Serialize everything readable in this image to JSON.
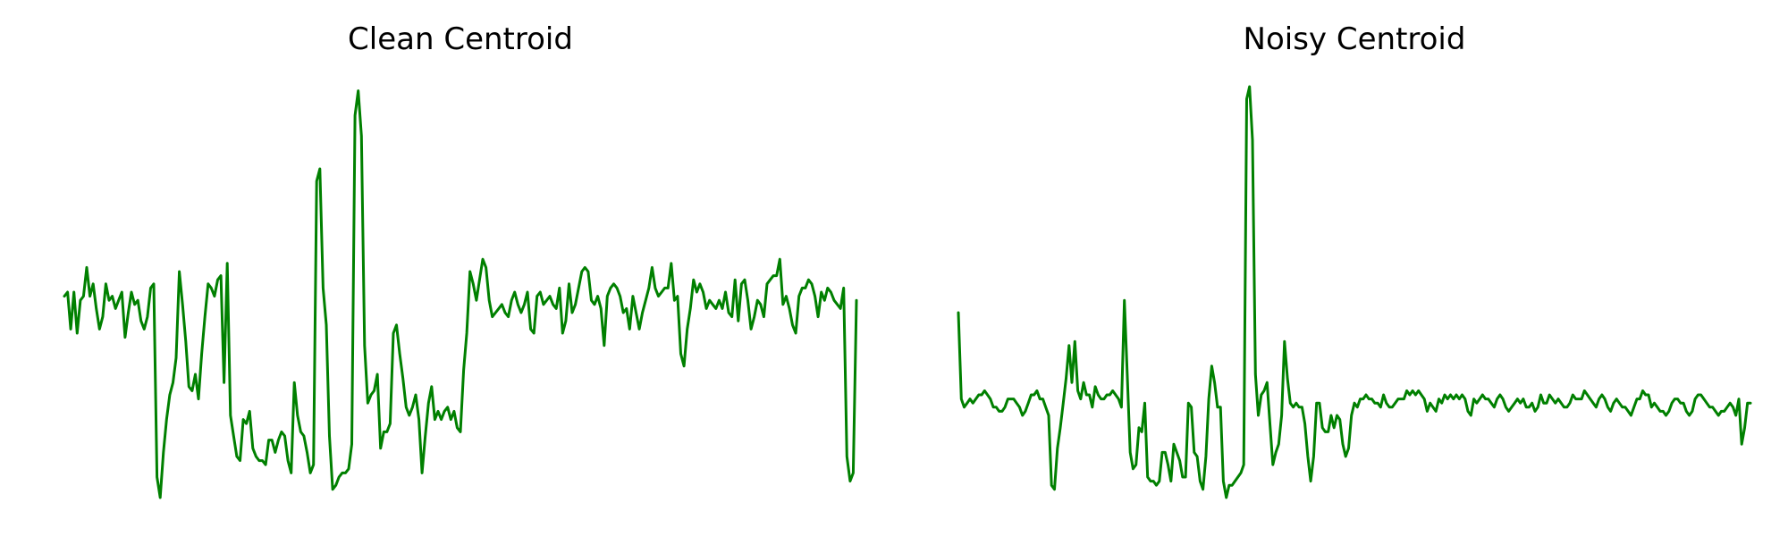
{
  "chart_data": [
    {
      "type": "line",
      "title": "Clean Centroid",
      "xlabel": "",
      "ylabel": "",
      "axes": "off",
      "grid": false,
      "color": "#008000",
      "series": [
        {
          "values": [
            0.49,
            0.5,
            0.41,
            0.5,
            0.4,
            0.48,
            0.49,
            0.56,
            0.49,
            0.52,
            0.46,
            0.41,
            0.44,
            0.52,
            0.48,
            0.49,
            0.46,
            0.48,
            0.5,
            0.39,
            0.45,
            0.5,
            0.47,
            0.48,
            0.43,
            0.41,
            0.44,
            0.51,
            0.52,
            0.05,
            0.0,
            0.11,
            0.19,
            0.25,
            0.28,
            0.34,
            0.55,
            0.47,
            0.38,
            0.27,
            0.26,
            0.3,
            0.24,
            0.35,
            0.44,
            0.52,
            0.51,
            0.49,
            0.53,
            0.54,
            0.28,
            0.57,
            0.2,
            0.15,
            0.1,
            0.09,
            0.19,
            0.18,
            0.21,
            0.12,
            0.1,
            0.09,
            0.09,
            0.08,
            0.14,
            0.14,
            0.11,
            0.14,
            0.16,
            0.15,
            0.09,
            0.06,
            0.28,
            0.2,
            0.16,
            0.15,
            0.11,
            0.06,
            0.08,
            0.77,
            0.8,
            0.51,
            0.42,
            0.15,
            0.02,
            0.03,
            0.05,
            0.06,
            0.06,
            0.07,
            0.13,
            0.93,
            0.99,
            0.88,
            0.37,
            0.23,
            0.25,
            0.26,
            0.3,
            0.12,
            0.16,
            0.16,
            0.18,
            0.4,
            0.42,
            0.35,
            0.29,
            0.22,
            0.2,
            0.22,
            0.25,
            0.19,
            0.06,
            0.15,
            0.23,
            0.27,
            0.19,
            0.21,
            0.19,
            0.21,
            0.22,
            0.19,
            0.21,
            0.17,
            0.16,
            0.31,
            0.4,
            0.55,
            0.52,
            0.48,
            0.53,
            0.58,
            0.56,
            0.48,
            0.44,
            0.45,
            0.46,
            0.47,
            0.45,
            0.44,
            0.48,
            0.5,
            0.47,
            0.45,
            0.47,
            0.5,
            0.41,
            0.4,
            0.49,
            0.5,
            0.47,
            0.48,
            0.49,
            0.47,
            0.46,
            0.51,
            0.4,
            0.43,
            0.52,
            0.45,
            0.47,
            0.51,
            0.55,
            0.56,
            0.55,
            0.48,
            0.47,
            0.49,
            0.46,
            0.37,
            0.49,
            0.51,
            0.52,
            0.51,
            0.49,
            0.45,
            0.46,
            0.41,
            0.49,
            0.45,
            0.41,
            0.45,
            0.48,
            0.51,
            0.56,
            0.51,
            0.49,
            0.5,
            0.51,
            0.51,
            0.57,
            0.48,
            0.49,
            0.35,
            0.32,
            0.41,
            0.46,
            0.53,
            0.5,
            0.52,
            0.5,
            0.46,
            0.48,
            0.47,
            0.46,
            0.48,
            0.46,
            0.5,
            0.45,
            0.44,
            0.53,
            0.43,
            0.52,
            0.53,
            0.48,
            0.41,
            0.44,
            0.48,
            0.47,
            0.44,
            0.52,
            0.53,
            0.54,
            0.54,
            0.58,
            0.47,
            0.49,
            0.46,
            0.42,
            0.4,
            0.49,
            0.51,
            0.51,
            0.53,
            0.52,
            0.49,
            0.44,
            0.5,
            0.48,
            0.51,
            0.5,
            0.48,
            0.47,
            0.46,
            0.51,
            0.1,
            0.04,
            0.06,
            0.48
          ]
        }
      ]
    },
    {
      "type": "line",
      "title": "Noisy Centroid",
      "xlabel": "",
      "ylabel": "",
      "axes": "off",
      "grid": false,
      "color": "#008000",
      "series": [
        {
          "values": [
            0.45,
            0.24,
            0.22,
            0.23,
            0.24,
            0.23,
            0.24,
            0.25,
            0.25,
            0.26,
            0.25,
            0.24,
            0.22,
            0.22,
            0.21,
            0.21,
            0.22,
            0.24,
            0.24,
            0.24,
            0.23,
            0.22,
            0.2,
            0.21,
            0.23,
            0.25,
            0.25,
            0.26,
            0.24,
            0.24,
            0.22,
            0.2,
            0.03,
            0.02,
            0.12,
            0.17,
            0.23,
            0.29,
            0.37,
            0.28,
            0.38,
            0.26,
            0.24,
            0.28,
            0.25,
            0.25,
            0.22,
            0.27,
            0.25,
            0.24,
            0.24,
            0.25,
            0.25,
            0.26,
            0.25,
            0.24,
            0.22,
            0.48,
            0.3,
            0.11,
            0.07,
            0.08,
            0.17,
            0.16,
            0.23,
            0.05,
            0.04,
            0.04,
            0.03,
            0.04,
            0.11,
            0.11,
            0.08,
            0.04,
            0.13,
            0.11,
            0.09,
            0.05,
            0.05,
            0.23,
            0.22,
            0.11,
            0.1,
            0.04,
            0.02,
            0.1,
            0.24,
            0.32,
            0.28,
            0.22,
            0.22,
            0.04,
            0.0,
            0.03,
            0.03,
            0.04,
            0.05,
            0.06,
            0.08,
            0.97,
            1.0,
            0.87,
            0.3,
            0.2,
            0.25,
            0.26,
            0.28,
            0.18,
            0.08,
            0.11,
            0.13,
            0.2,
            0.38,
            0.29,
            0.23,
            0.22,
            0.23,
            0.22,
            0.22,
            0.18,
            0.1,
            0.04,
            0.1,
            0.23,
            0.23,
            0.17,
            0.16,
            0.16,
            0.2,
            0.17,
            0.2,
            0.19,
            0.13,
            0.1,
            0.12,
            0.2,
            0.23,
            0.22,
            0.24,
            0.24,
            0.25,
            0.24,
            0.24,
            0.23,
            0.23,
            0.22,
            0.25,
            0.23,
            0.22,
            0.22,
            0.23,
            0.24,
            0.24,
            0.24,
            0.26,
            0.25,
            0.26,
            0.25,
            0.26,
            0.25,
            0.24,
            0.21,
            0.23,
            0.22,
            0.21,
            0.24,
            0.23,
            0.25,
            0.24,
            0.25,
            0.24,
            0.25,
            0.24,
            0.25,
            0.24,
            0.21,
            0.2,
            0.24,
            0.23,
            0.24,
            0.25,
            0.24,
            0.24,
            0.23,
            0.22,
            0.24,
            0.25,
            0.24,
            0.22,
            0.21,
            0.22,
            0.23,
            0.24,
            0.23,
            0.24,
            0.22,
            0.22,
            0.23,
            0.21,
            0.22,
            0.25,
            0.23,
            0.23,
            0.25,
            0.24,
            0.23,
            0.24,
            0.23,
            0.22,
            0.22,
            0.23,
            0.25,
            0.24,
            0.24,
            0.24,
            0.26,
            0.25,
            0.24,
            0.23,
            0.22,
            0.24,
            0.25,
            0.24,
            0.22,
            0.21,
            0.23,
            0.24,
            0.23,
            0.22,
            0.22,
            0.21,
            0.2,
            0.22,
            0.24,
            0.24,
            0.26,
            0.25,
            0.25,
            0.22,
            0.23,
            0.22,
            0.21,
            0.21,
            0.2,
            0.21,
            0.23,
            0.24,
            0.24,
            0.23,
            0.23,
            0.21,
            0.2,
            0.21,
            0.24,
            0.25,
            0.25,
            0.24,
            0.23,
            0.22,
            0.22,
            0.21,
            0.2,
            0.21,
            0.21,
            0.22,
            0.23,
            0.22,
            0.2,
            0.24,
            0.13,
            0.17,
            0.23,
            0.23
          ]
        }
      ]
    }
  ]
}
